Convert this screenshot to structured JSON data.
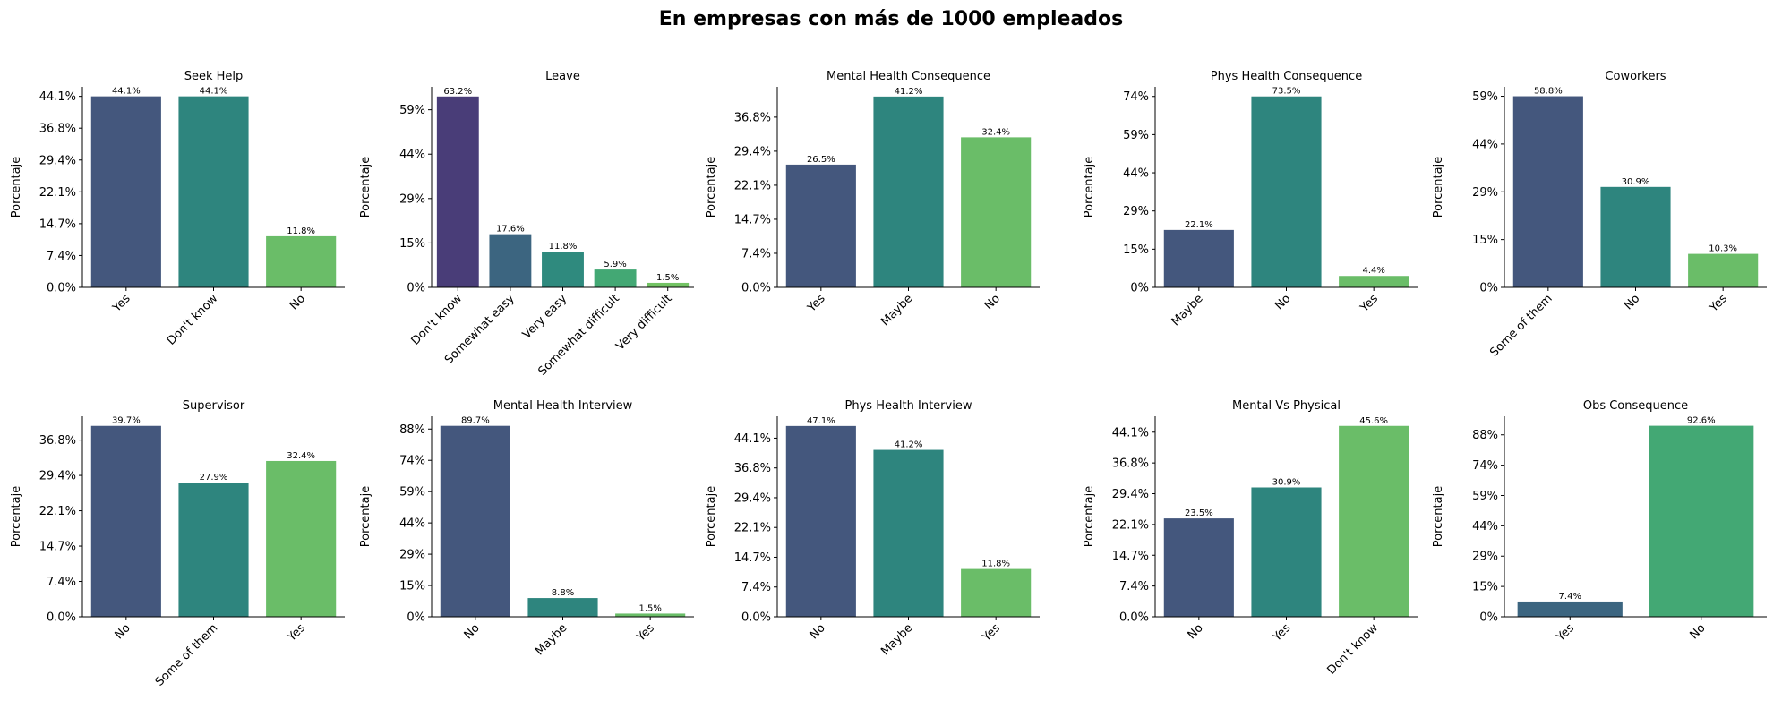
{
  "title": "En empresas con más de 1000 empleados",
  "ylabel": "Porcentaje",
  "colors": {
    "viridis_3": [
      "#44577d",
      "#2e857e",
      "#6abd68"
    ],
    "viridis_5": [
      "#493d78",
      "#3c6580",
      "#2f8a7e",
      "#43a874",
      "#73c364"
    ],
    "viridis_2": [
      "#3c6580",
      "#43a874"
    ]
  },
  "chart_data": [
    {
      "type": "bar",
      "title": "Seek Help",
      "categories": [
        "Yes",
        "Don't know",
        "No"
      ],
      "values": [
        44.1,
        44.1,
        11.8
      ],
      "data_labels": [
        "44.1%",
        "44.1%",
        "11.8%"
      ],
      "yticks": [
        "0.0%",
        "7.4%",
        "14.7%",
        "22.1%",
        "29.4%",
        "36.8%",
        "44.1%"
      ],
      "ytick_values": [
        0,
        7.35,
        14.7,
        22.05,
        29.4,
        36.75,
        44.1
      ],
      "ylim": [
        0,
        46.3
      ],
      "palette": "viridis_3"
    },
    {
      "type": "bar",
      "title": "Leave",
      "categories": [
        "Don't know",
        "Somewhat easy",
        "Very easy",
        "Somewhat difficult",
        "Very difficult"
      ],
      "values": [
        63.2,
        17.6,
        11.8,
        5.9,
        1.5
      ],
      "data_labels": [
        "63.2%",
        "17.6%",
        "11.8%",
        "5.9%",
        "1.5%"
      ],
      "yticks": [
        "0%",
        "15%",
        "29%",
        "44%",
        "59%"
      ],
      "ytick_values": [
        0,
        14.7,
        29.4,
        44.1,
        58.8
      ],
      "ylim": [
        0,
        66.4
      ],
      "palette": "viridis_5"
    },
    {
      "type": "bar",
      "title": "Mental Health Consequence",
      "categories": [
        "Yes",
        "Maybe",
        "No"
      ],
      "values": [
        26.5,
        41.2,
        32.4
      ],
      "data_labels": [
        "26.5%",
        "41.2%",
        "32.4%"
      ],
      "yticks": [
        "0.0%",
        "7.4%",
        "14.7%",
        "22.1%",
        "29.4%",
        "36.8%"
      ],
      "ytick_values": [
        0,
        7.35,
        14.7,
        22.05,
        29.4,
        36.75
      ],
      "ylim": [
        0,
        43.3
      ],
      "palette": "viridis_3"
    },
    {
      "type": "bar",
      "title": "Phys Health Consequence",
      "categories": [
        "Maybe",
        "No",
        "Yes"
      ],
      "values": [
        22.1,
        73.5,
        4.4
      ],
      "data_labels": [
        "22.1%",
        "73.5%",
        "4.4%"
      ],
      "yticks": [
        "0%",
        "15%",
        "29%",
        "44%",
        "59%",
        "74%"
      ],
      "ytick_values": [
        0,
        14.7,
        29.4,
        44.1,
        58.8,
        73.5
      ],
      "ylim": [
        0,
        77.2
      ],
      "palette": "viridis_3"
    },
    {
      "type": "bar",
      "title": "Coworkers",
      "categories": [
        "Some of them",
        "No",
        "Yes"
      ],
      "values": [
        58.8,
        30.9,
        10.3
      ],
      "data_labels": [
        "58.8%",
        "30.9%",
        "10.3%"
      ],
      "yticks": [
        "0%",
        "15%",
        "29%",
        "44%",
        "59%"
      ],
      "ytick_values": [
        0,
        14.7,
        29.4,
        44.1,
        58.8
      ],
      "ylim": [
        0,
        61.7
      ],
      "palette": "viridis_3"
    },
    {
      "type": "bar",
      "title": "Supervisor",
      "categories": [
        "No",
        "Some of them",
        "Yes"
      ],
      "values": [
        39.7,
        27.9,
        32.4
      ],
      "data_labels": [
        "39.7%",
        "27.9%",
        "32.4%"
      ],
      "yticks": [
        "0.0%",
        "7.4%",
        "14.7%",
        "22.1%",
        "29.4%",
        "36.8%"
      ],
      "ytick_values": [
        0,
        7.35,
        14.7,
        22.05,
        29.4,
        36.75
      ],
      "ylim": [
        0,
        41.7
      ],
      "palette": "viridis_3"
    },
    {
      "type": "bar",
      "title": "Mental Health Interview",
      "categories": [
        "No",
        "Maybe",
        "Yes"
      ],
      "values": [
        89.7,
        8.8,
        1.5
      ],
      "data_labels": [
        "89.7%",
        "8.8%",
        "1.5%"
      ],
      "yticks": [
        "0%",
        "15%",
        "29%",
        "44%",
        "59%",
        "74%",
        "88%"
      ],
      "ytick_values": [
        0,
        14.7,
        29.4,
        44.1,
        58.8,
        73.5,
        88.2
      ],
      "ylim": [
        0,
        94.2
      ],
      "palette": "viridis_3"
    },
    {
      "type": "bar",
      "title": "Phys Health Interview",
      "categories": [
        "No",
        "Maybe",
        "Yes"
      ],
      "values": [
        47.1,
        41.2,
        11.8
      ],
      "data_labels": [
        "47.1%",
        "41.2%",
        "11.8%"
      ],
      "yticks": [
        "0.0%",
        "7.4%",
        "14.7%",
        "22.1%",
        "29.4%",
        "36.8%",
        "44.1%"
      ],
      "ytick_values": [
        0,
        7.35,
        14.7,
        22.05,
        29.4,
        36.75,
        44.1
      ],
      "ylim": [
        0,
        49.5
      ],
      "palette": "viridis_3"
    },
    {
      "type": "bar",
      "title": "Mental Vs Physical",
      "categories": [
        "No",
        "Yes",
        "Don't know"
      ],
      "values": [
        23.5,
        30.9,
        45.6
      ],
      "data_labels": [
        "23.5%",
        "30.9%",
        "45.6%"
      ],
      "yticks": [
        "0.0%",
        "7.4%",
        "14.7%",
        "22.1%",
        "29.4%",
        "36.8%",
        "44.1%"
      ],
      "ytick_values": [
        0,
        7.35,
        14.7,
        22.05,
        29.4,
        36.75,
        44.1
      ],
      "ylim": [
        0,
        47.9
      ],
      "palette": "viridis_3"
    },
    {
      "type": "bar",
      "title": "Obs Consequence",
      "categories": [
        "Yes",
        "No"
      ],
      "values": [
        7.4,
        92.6
      ],
      "data_labels": [
        "7.4%",
        "92.6%"
      ],
      "yticks": [
        "0%",
        "15%",
        "29%",
        "44%",
        "59%",
        "74%",
        "88%"
      ],
      "ytick_values": [
        0,
        14.7,
        29.4,
        44.1,
        58.8,
        73.5,
        88.2
      ],
      "ylim": [
        0,
        97.2
      ],
      "palette": "viridis_2"
    }
  ]
}
